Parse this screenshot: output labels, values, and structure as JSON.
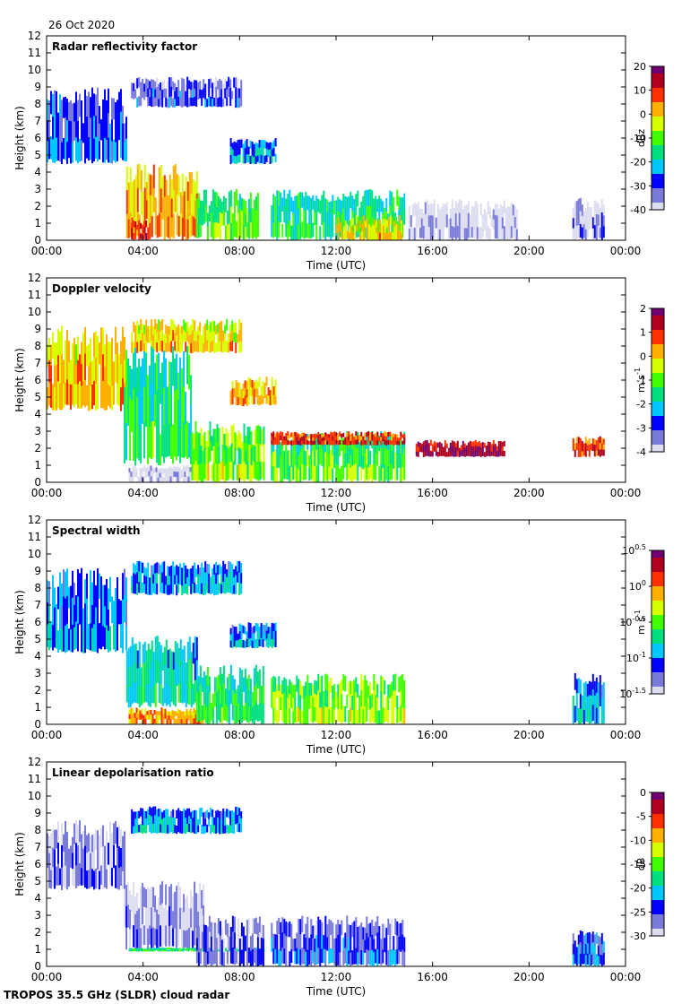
{
  "date_label": "26 Oct 2020",
  "footer": "TROPOS 35.5 GHz (SLDR) cloud radar",
  "colors": {
    "colormap": [
      "#ddddf0",
      "#7a7ad8",
      "#0000ff",
      "#00c8ff",
      "#00e080",
      "#40ff00",
      "#d8ff00",
      "#ffb000",
      "#ff3000",
      "#b00020",
      "#700070"
    ]
  },
  "chart_data": [
    {
      "type": "heatmap",
      "title": "Radar reflectivity factor",
      "xlabel": "Time (UTC)",
      "ylabel": "Height (km)",
      "xticks": [
        "00:00",
        "04:00",
        "08:00",
        "12:00",
        "16:00",
        "20:00",
        "00:00"
      ],
      "xlim": [
        0,
        24
      ],
      "ylim": [
        0,
        12
      ],
      "yticks": [
        "0",
        "1",
        "2",
        "3",
        "4",
        "5",
        "6",
        "7",
        "8",
        "9",
        "10",
        "11",
        "12"
      ],
      "colorbar": {
        "unit": "dBz",
        "min": -40,
        "max": 20,
        "labels": [
          "20",
          "10",
          "0",
          "-10",
          "-20",
          "-30",
          "-40"
        ]
      },
      "features": [
        {
          "t0": 0.0,
          "t1": 3.3,
          "z0": 4.5,
          "z1": 9.0,
          "level": 0.22
        },
        {
          "t0": 3.5,
          "t1": 8.1,
          "z0": 7.8,
          "z1": 9.6,
          "level": 0.18
        },
        {
          "t0": 3.3,
          "t1": 6.2,
          "z0": 0.0,
          "z1": 4.5,
          "level": 0.72
        },
        {
          "t0": 3.5,
          "t1": 4.3,
          "z0": 0.0,
          "z1": 1.2,
          "level": 0.9
        },
        {
          "t0": 6.2,
          "t1": 8.8,
          "z0": 0.0,
          "z1": 3.0,
          "level": 0.5
        },
        {
          "t0": 7.6,
          "t1": 9.5,
          "z0": 4.5,
          "z1": 6.0,
          "level": 0.3
        },
        {
          "t0": 9.3,
          "t1": 14.8,
          "z0": 0.0,
          "z1": 3.0,
          "level": 0.42
        },
        {
          "t0": 12.0,
          "t1": 14.7,
          "z0": 0.0,
          "z1": 1.5,
          "level": 0.65
        },
        {
          "t0": 15.0,
          "t1": 19.5,
          "z0": 0.0,
          "z1": 2.4,
          "level": 0.02
        },
        {
          "t0": 21.8,
          "t1": 23.1,
          "z0": 0.0,
          "z1": 2.5,
          "level": 0.1
        }
      ]
    },
    {
      "type": "heatmap",
      "title": "Doppler velocity",
      "xlabel": "Time (UTC)",
      "ylabel": "Height (km)",
      "xticks": [
        "00:00",
        "04:00",
        "08:00",
        "12:00",
        "16:00",
        "20:00",
        "00:00"
      ],
      "xlim": [
        0,
        24
      ],
      "ylim": [
        0,
        12
      ],
      "yticks": [
        "0",
        "1",
        "2",
        "3",
        "4",
        "5",
        "6",
        "7",
        "8",
        "9",
        "10",
        "11",
        "12"
      ],
      "colorbar": {
        "unit": "m s",
        "unit_sup": "-1",
        "min": -4,
        "max": 2,
        "labels": [
          "2",
          "1",
          "0",
          "-1",
          "-2",
          "-3",
          "-4"
        ]
      },
      "features": [
        {
          "t0": 0.0,
          "t1": 3.2,
          "z0": 4.2,
          "z1": 9.2,
          "level": 0.7
        },
        {
          "t0": 3.5,
          "t1": 8.1,
          "z0": 7.6,
          "z1": 9.6,
          "level": 0.68
        },
        {
          "t0": 3.2,
          "t1": 6.0,
          "z0": 1.0,
          "z1": 8.0,
          "level": 0.45
        },
        {
          "t0": 3.4,
          "t1": 6.0,
          "z0": 0.0,
          "z1": 1.0,
          "level": 0.02
        },
        {
          "t0": 7.6,
          "t1": 9.5,
          "z0": 4.5,
          "z1": 6.2,
          "level": 0.72
        },
        {
          "t0": 6.0,
          "t1": 9.0,
          "z0": 0.0,
          "z1": 3.6,
          "level": 0.55
        },
        {
          "t0": 9.3,
          "t1": 14.8,
          "z0": 0.0,
          "z1": 3.0,
          "level": 0.5
        },
        {
          "t0": 9.3,
          "t1": 14.8,
          "z0": 2.2,
          "z1": 3.0,
          "level": 0.85
        },
        {
          "t0": 15.3,
          "t1": 19.0,
          "z0": 1.5,
          "z1": 2.5,
          "level": 0.95
        },
        {
          "t0": 21.8,
          "t1": 23.1,
          "z0": 1.5,
          "z1": 2.7,
          "level": 0.85
        }
      ]
    },
    {
      "type": "heatmap",
      "title": "Spectral width",
      "xlabel": "Time (UTC)",
      "ylabel": "Height (km)",
      "xticks": [
        "00:00",
        "04:00",
        "08:00",
        "12:00",
        "16:00",
        "20:00",
        "00:00"
      ],
      "xlim": [
        0,
        24
      ],
      "ylim": [
        0,
        12
      ],
      "yticks": [
        "0",
        "1",
        "2",
        "3",
        "4",
        "5",
        "6",
        "7",
        "8",
        "9",
        "10",
        "11",
        "12"
      ],
      "colorbar": {
        "unit": "m s",
        "unit_sup": "-1",
        "scale": "log10",
        "min": -1.5,
        "max": 0.5,
        "label_exponents": [
          "0.5",
          "0",
          "-0.5",
          "-1",
          "-1.5"
        ]
      },
      "features": [
        {
          "t0": 0.0,
          "t1": 3.3,
          "z0": 4.2,
          "z1": 9.2,
          "level": 0.28
        },
        {
          "t0": 3.5,
          "t1": 8.1,
          "z0": 7.6,
          "z1": 9.6,
          "level": 0.3
        },
        {
          "t0": 3.3,
          "t1": 6.2,
          "z0": 1.0,
          "z1": 5.2,
          "level": 0.38
        },
        {
          "t0": 3.4,
          "t1": 6.5,
          "z0": 0.0,
          "z1": 1.0,
          "level": 0.75
        },
        {
          "t0": 6.2,
          "t1": 9.0,
          "z0": 0.0,
          "z1": 3.5,
          "level": 0.45
        },
        {
          "t0": 7.6,
          "t1": 9.5,
          "z0": 4.5,
          "z1": 6.0,
          "level": 0.3
        },
        {
          "t0": 9.3,
          "t1": 14.8,
          "z0": 0.0,
          "z1": 3.0,
          "level": 0.55
        },
        {
          "t0": 21.8,
          "t1": 23.1,
          "z0": 0.0,
          "z1": 3.0,
          "level": 0.3
        }
      ]
    },
    {
      "type": "heatmap",
      "title": "Linear depolarisation ratio",
      "xlabel": "Time (UTC)",
      "ylabel": "Height (km)",
      "xticks": [
        "00:00",
        "04:00",
        "08:00",
        "12:00",
        "16:00",
        "20:00",
        "00:00"
      ],
      "xlim": [
        0,
        24
      ],
      "ylim": [
        0,
        12
      ],
      "yticks": [
        "0",
        "1",
        "2",
        "3",
        "4",
        "5",
        "6",
        "7",
        "8",
        "9",
        "10",
        "11",
        "12"
      ],
      "colorbar": {
        "unit": "dB",
        "min": -30,
        "max": 0,
        "labels": [
          "0",
          "-5",
          "-10",
          "-15",
          "-20",
          "-25",
          "-30"
        ]
      },
      "features": [
        {
          "t0": 0.0,
          "t1": 3.2,
          "z0": 4.5,
          "z1": 8.6,
          "level": 0.12
        },
        {
          "t0": 3.5,
          "t1": 8.1,
          "z0": 7.8,
          "z1": 9.4,
          "level": 0.3
        },
        {
          "t0": 3.2,
          "t1": 6.5,
          "z0": 1.0,
          "z1": 5.0,
          "level": 0.08
        },
        {
          "t0": 3.4,
          "t1": 9.0,
          "z0": 0.9,
          "z1": 1.1,
          "level": 0.45
        },
        {
          "t0": 6.2,
          "t1": 9.0,
          "z0": 0.0,
          "z1": 3.0,
          "level": 0.15
        },
        {
          "t0": 9.3,
          "t1": 14.8,
          "z0": 0.0,
          "z1": 3.0,
          "level": 0.2
        },
        {
          "t0": 21.8,
          "t1": 23.1,
          "z0": 0.0,
          "z1": 2.2,
          "level": 0.25
        }
      ]
    }
  ]
}
